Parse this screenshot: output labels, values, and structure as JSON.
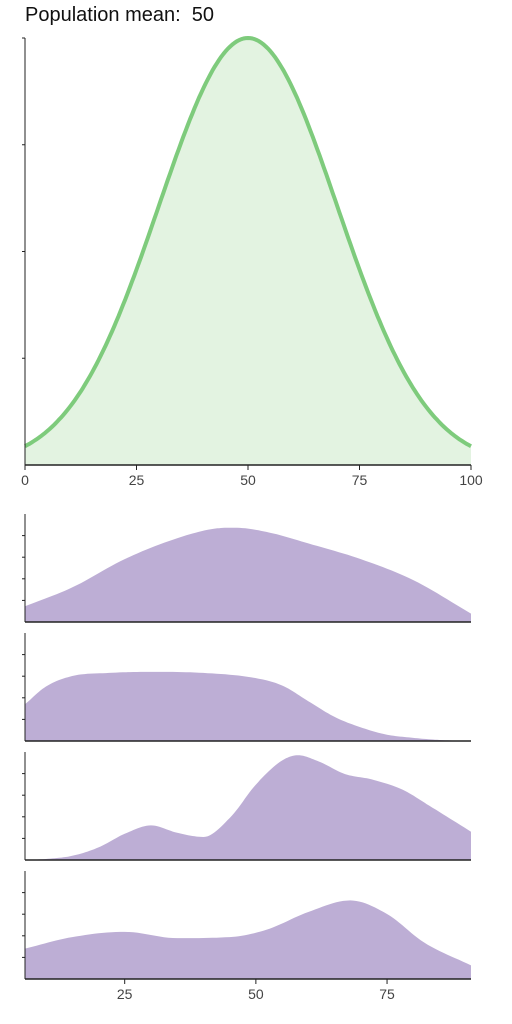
{
  "header": {
    "label": "Population mean:",
    "value": "50"
  },
  "colors": {
    "population_line": "#7ecb7c",
    "population_fill": "#e3f3e1",
    "sample_fill": "#bdaed5",
    "axis": "#222222"
  },
  "chart_data": [
    {
      "type": "area",
      "name": "population",
      "xlim": [
        0,
        100
      ],
      "xticks": [
        0,
        25,
        50,
        75,
        100
      ],
      "y_ticks_count": 4,
      "mean": 50,
      "sd": 20,
      "x": [
        0,
        10,
        20,
        30,
        40,
        50,
        60,
        70,
        80,
        90,
        100
      ],
      "y": [
        0.04,
        0.14,
        0.33,
        0.61,
        0.88,
        1.0,
        0.88,
        0.61,
        0.33,
        0.14,
        0.04
      ]
    },
    {
      "type": "area",
      "name": "samples",
      "xlim": [
        6,
        91
      ],
      "xticks": [
        25,
        50,
        75
      ],
      "series": [
        {
          "x": [
            6,
            15,
            25,
            35,
            42,
            46,
            52,
            60,
            70,
            80,
            91
          ],
          "y": [
            0.15,
            0.33,
            0.6,
            0.8,
            0.89,
            0.9,
            0.86,
            0.75,
            0.6,
            0.4,
            0.08
          ]
        },
        {
          "x": [
            6,
            10,
            15,
            22,
            30,
            40,
            50,
            55,
            60,
            65,
            70,
            75,
            80,
            85,
            91
          ],
          "y": [
            0.35,
            0.52,
            0.62,
            0.65,
            0.66,
            0.65,
            0.6,
            0.53,
            0.38,
            0.23,
            0.13,
            0.06,
            0.03,
            0.01,
            0.0
          ]
        },
        {
          "x": [
            6,
            10,
            15,
            20,
            25,
            30,
            35,
            40,
            45,
            50,
            55,
            58,
            62,
            67,
            72,
            78,
            83,
            91
          ],
          "y": [
            0.0,
            0.01,
            0.04,
            0.12,
            0.25,
            0.33,
            0.26,
            0.22,
            0.4,
            0.72,
            0.95,
            1.0,
            0.94,
            0.82,
            0.77,
            0.67,
            0.52,
            0.27
          ]
        },
        {
          "x": [
            6,
            15,
            25,
            35,
            45,
            52,
            60,
            68,
            75,
            82,
            91
          ],
          "y": [
            0.29,
            0.4,
            0.45,
            0.39,
            0.4,
            0.47,
            0.64,
            0.75,
            0.62,
            0.35,
            0.13
          ]
        }
      ]
    }
  ]
}
